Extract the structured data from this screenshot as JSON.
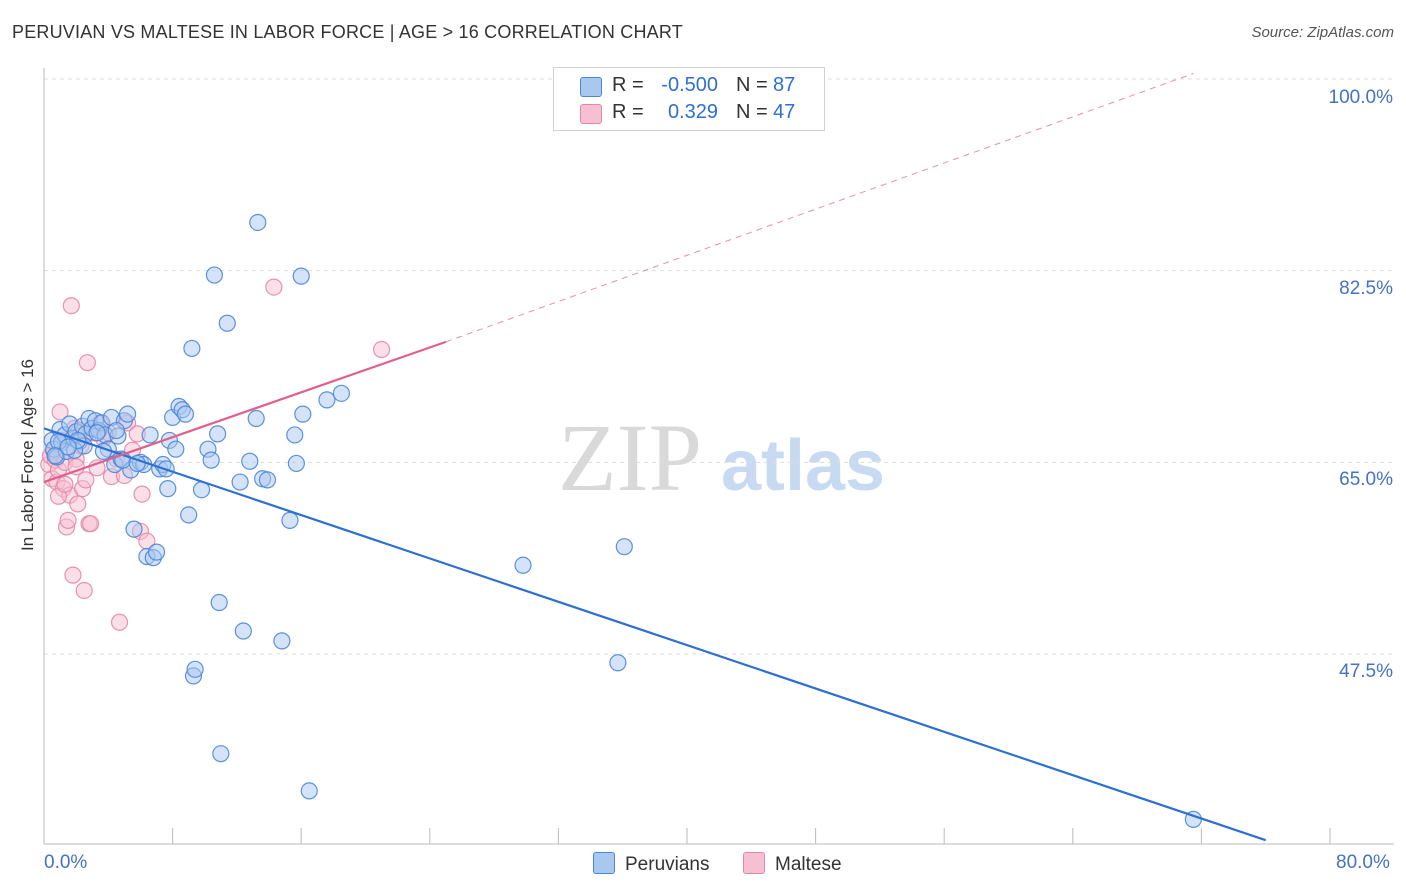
{
  "title": "PERUVIAN VS MALTESE IN LABOR FORCE | AGE > 16 CORRELATION CHART",
  "source": "Source: ZipAtlas.com",
  "watermark": {
    "zip": "ZIP",
    "atlas": "atlas"
  },
  "legend": {
    "rows": [
      {
        "r_label": "R =",
        "r_value": "-0.500",
        "n_label": "N =",
        "n_value": "87"
      },
      {
        "r_label": "R =",
        "r_value": "0.329",
        "n_label": "N =",
        "n_value": "47"
      }
    ]
  },
  "colors": {
    "peruvians_fill": "#a9c8f0",
    "peruvians_stroke": "#4a86d8",
    "peruvians_line": "#2d6fd2",
    "maltese_fill": "#f7bfd2",
    "maltese_stroke": "#e487a6",
    "maltese_line": "#e0608a",
    "axis_label": "#4472c4",
    "grid": "#dddddd"
  },
  "chart_data": {
    "type": "scatter",
    "title": "PERUVIAN VS MALTESE IN LABOR FORCE | AGE > 16 CORRELATION CHART",
    "xlabel": "",
    "ylabel": "In Labor Force | Age > 16",
    "xlim": [
      0,
      80
    ],
    "ylim": [
      30.5,
      100.5
    ],
    "x_tick_labels": [
      "0.0%",
      "80.0%"
    ],
    "y_ticks": [
      47.5,
      65.0,
      82.5,
      100.0
    ],
    "y_tick_labels": [
      "47.5%",
      "65.0%",
      "82.5%",
      "100.0%"
    ],
    "grid": true,
    "series": [
      {
        "name": "Peruvians",
        "r": -0.5,
        "n": 87,
        "trend": {
          "x0": 0.0,
          "y0": 68.1,
          "x1": 76.0,
          "y1": 30.5,
          "style": "solid"
        },
        "points": [
          [
            0.5,
            67.0
          ],
          [
            0.6,
            66.2
          ],
          [
            0.8,
            65.5
          ],
          [
            1.0,
            68.0
          ],
          [
            1.1,
            66.8
          ],
          [
            1.3,
            67.5
          ],
          [
            1.4,
            66.0
          ],
          [
            1.6,
            68.5
          ],
          [
            1.8,
            67.2
          ],
          [
            2.0,
            67.8
          ],
          [
            2.2,
            66.9
          ],
          [
            2.4,
            68.3
          ],
          [
            2.6,
            67.6
          ],
          [
            2.8,
            69.0
          ],
          [
            3.0,
            68.1
          ],
          [
            3.2,
            68.8
          ],
          [
            3.4,
            67.9
          ],
          [
            3.6,
            68.6
          ],
          [
            3.8,
            67.5
          ],
          [
            4.0,
            66.2
          ],
          [
            4.2,
            69.1
          ],
          [
            4.4,
            64.8
          ],
          [
            4.6,
            67.4
          ],
          [
            4.8,
            65.3
          ],
          [
            5.0,
            68.8
          ],
          [
            5.2,
            69.4
          ],
          [
            5.4,
            64.3
          ],
          [
            5.6,
            58.9
          ],
          [
            6.0,
            65.0
          ],
          [
            6.2,
            64.8
          ],
          [
            6.4,
            56.4
          ],
          [
            6.6,
            67.5
          ],
          [
            6.8,
            56.3
          ],
          [
            7.0,
            56.8
          ],
          [
            7.2,
            64.4
          ],
          [
            7.4,
            64.8
          ],
          [
            7.6,
            64.4
          ],
          [
            7.7,
            62.6
          ],
          [
            7.8,
            67.0
          ],
          [
            8.0,
            69.1
          ],
          [
            8.2,
            66.2
          ],
          [
            8.4,
            70.1
          ],
          [
            8.6,
            69.8
          ],
          [
            8.8,
            69.4
          ],
          [
            9.0,
            60.2
          ],
          [
            9.2,
            75.4
          ],
          [
            9.3,
            45.5
          ],
          [
            9.4,
            46.1
          ],
          [
            9.8,
            62.5
          ],
          [
            10.2,
            66.2
          ],
          [
            10.4,
            65.2
          ],
          [
            10.6,
            82.1
          ],
          [
            10.8,
            67.6
          ],
          [
            10.9,
            52.2
          ],
          [
            11.0,
            38.4
          ],
          [
            11.4,
            77.7
          ],
          [
            12.2,
            63.2
          ],
          [
            12.4,
            49.6
          ],
          [
            12.8,
            65.1
          ],
          [
            13.2,
            69.0
          ],
          [
            13.3,
            86.9
          ],
          [
            13.6,
            63.5
          ],
          [
            13.9,
            63.4
          ],
          [
            14.8,
            48.7
          ],
          [
            15.3,
            59.7
          ],
          [
            15.6,
            67.5
          ],
          [
            15.7,
            64.9
          ],
          [
            16.1,
            69.4
          ],
          [
            16.5,
            35.0
          ],
          [
            16.0,
            82.0
          ],
          [
            17.6,
            70.7
          ],
          [
            18.5,
            71.3
          ],
          [
            29.8,
            55.6
          ],
          [
            35.7,
            46.7
          ],
          [
            36.1,
            57.3
          ],
          [
            71.5,
            32.4
          ],
          [
            2.5,
            66.5
          ],
          [
            3.7,
            66.0
          ],
          [
            4.9,
            65.2
          ],
          [
            5.8,
            64.9
          ],
          [
            1.9,
            66.1
          ],
          [
            0.9,
            66.9
          ],
          [
            2.1,
            67.0
          ],
          [
            3.3,
            67.7
          ],
          [
            4.5,
            67.9
          ],
          [
            0.7,
            65.6
          ],
          [
            1.5,
            66.4
          ]
        ]
      },
      {
        "name": "Maltese",
        "r": 0.329,
        "n": 47,
        "trend": {
          "x0": 0.0,
          "y0": 63.2,
          "x1": 25.0,
          "y1": 76.0,
          "style": "solid"
        },
        "trend_extension": {
          "x0": 25.0,
          "y0": 76.0,
          "x1": 71.5,
          "y1": 100.5,
          "style": "dashed"
        },
        "points": [
          [
            0.3,
            64.8
          ],
          [
            0.4,
            65.6
          ],
          [
            0.5,
            63.5
          ],
          [
            0.6,
            66.0
          ],
          [
            0.7,
            65.2
          ],
          [
            0.8,
            63.2
          ],
          [
            0.9,
            64.3
          ],
          [
            1.0,
            69.6
          ],
          [
            1.1,
            67.0
          ],
          [
            1.2,
            62.6
          ],
          [
            1.3,
            65.0
          ],
          [
            1.4,
            59.1
          ],
          [
            1.5,
            59.7
          ],
          [
            1.6,
            62.0
          ],
          [
            1.7,
            79.3
          ],
          [
            1.8,
            54.7
          ],
          [
            1.9,
            68.1
          ],
          [
            2.0,
            65.3
          ],
          [
            2.1,
            61.2
          ],
          [
            2.2,
            67.9
          ],
          [
            2.3,
            66.5
          ],
          [
            2.4,
            62.6
          ],
          [
            2.5,
            53.3
          ],
          [
            2.6,
            63.4
          ],
          [
            2.7,
            74.1
          ],
          [
            2.8,
            59.4
          ],
          [
            2.9,
            59.4
          ],
          [
            3.1,
            67.7
          ],
          [
            3.3,
            64.5
          ],
          [
            3.5,
            68.6
          ],
          [
            3.7,
            67.2
          ],
          [
            4.0,
            67.7
          ],
          [
            4.2,
            63.7
          ],
          [
            4.5,
            65.3
          ],
          [
            4.7,
            50.4
          ],
          [
            5.0,
            63.8
          ],
          [
            5.2,
            68.6
          ],
          [
            5.5,
            66.1
          ],
          [
            5.8,
            67.6
          ],
          [
            6.0,
            58.7
          ],
          [
            6.1,
            62.1
          ],
          [
            6.4,
            57.8
          ],
          [
            14.3,
            81.0
          ],
          [
            21.0,
            75.3
          ],
          [
            0.9,
            61.9
          ],
          [
            1.3,
            63.0
          ],
          [
            2.0,
            64.6
          ]
        ]
      }
    ]
  }
}
